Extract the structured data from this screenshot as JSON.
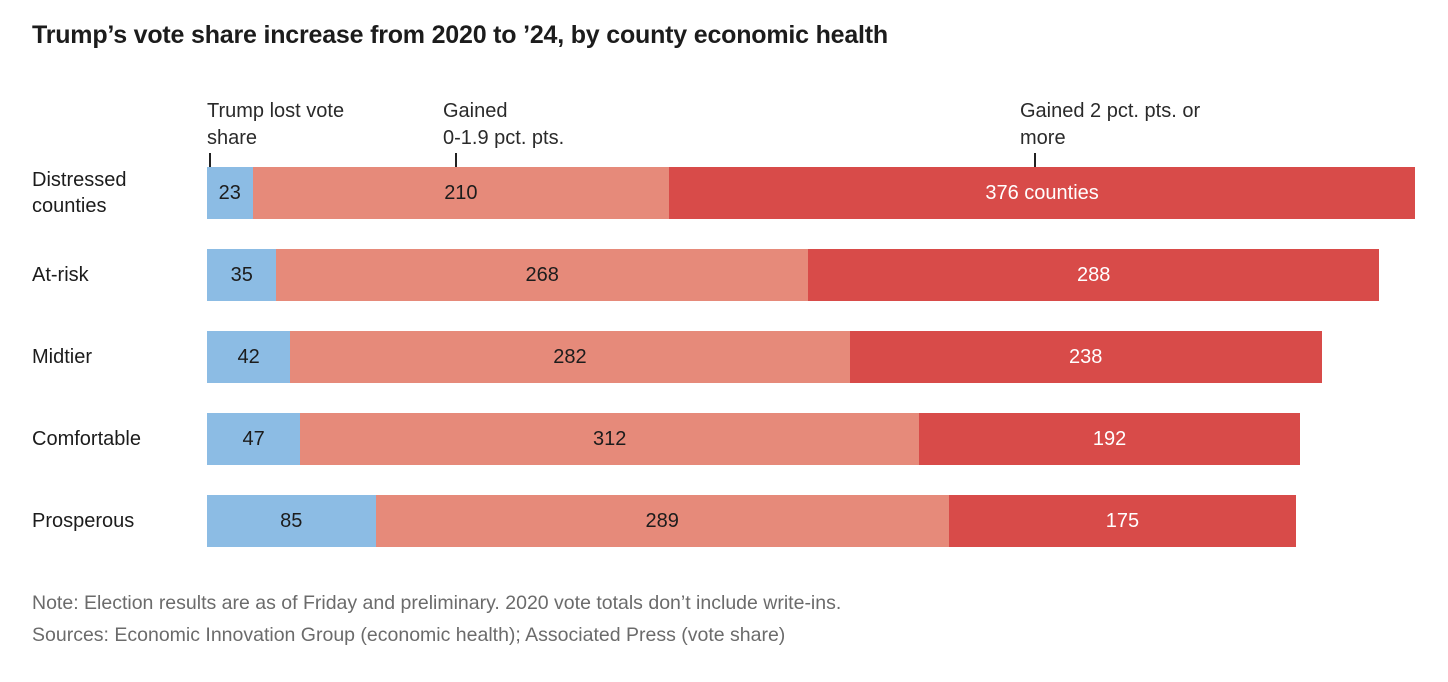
{
  "title": "Trump’s vote share increase from 2020 to ’24, by county economic health",
  "legend": {
    "labels": [
      {
        "line1": "Trump lost vote",
        "line2": "share"
      },
      {
        "line1": "Gained",
        "line2": "0-1.9 pct. pts."
      },
      {
        "line1": "Gained 2 pct. pts. or",
        "line2": "more"
      }
    ]
  },
  "chart_data": {
    "type": "bar",
    "orientation": "horizontal",
    "stacked": true,
    "title": "Trump’s vote share increase from 2020 to ’24, by county economic health",
    "unit": "counties",
    "xlim": [
      0,
      609
    ],
    "grid": false,
    "legend_position": "top",
    "categories": [
      "Distressed counties",
      "At-risk",
      "Midtier",
      "Comfortable",
      "Prosperous"
    ],
    "series": [
      {
        "name": "Trump lost vote share",
        "color": "#8cbce4",
        "value_color": "#1c1c1c",
        "values": [
          23,
          35,
          42,
          47,
          85
        ],
        "labels": [
          "23",
          "35",
          "42",
          "47",
          "85"
        ]
      },
      {
        "name": "Gained 0-1.9 pct. pts.",
        "color": "#e68a7a",
        "value_color": "#1c1c1c",
        "values": [
          210,
          268,
          282,
          312,
          289
        ],
        "labels": [
          "210",
          "268",
          "282",
          "312",
          "289"
        ]
      },
      {
        "name": "Gained 2 pct. pts. or more",
        "color": "#d84b49",
        "value_color": "#ffffff",
        "values": [
          376,
          288,
          238,
          192,
          175
        ],
        "labels": [
          "376 counties",
          "288",
          "238",
          "192",
          "175"
        ]
      }
    ]
  },
  "footer": {
    "note": "Note: Election results are as of Friday and preliminary. 2020 vote totals don’t include write-ins.",
    "sources": "Sources: Economic Innovation Group (economic health); Associated Press (vote share)"
  }
}
